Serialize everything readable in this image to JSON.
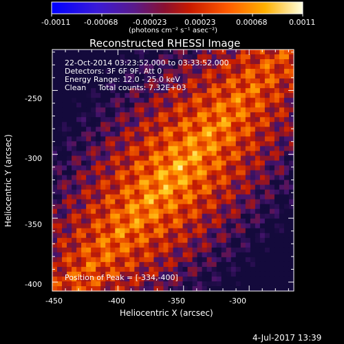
{
  "colorbar": {
    "ticks": [
      "-0.0011",
      "-0.00068",
      "-0.00023",
      "0.00023",
      "0.00068",
      "0.0011"
    ],
    "unit_label": "(photons cm⁻² s⁻¹ asec⁻²)"
  },
  "title": "Reconstructed RHESSI Image",
  "info": {
    "line1": "22-Oct-2014 03:23:52.000 to 03:33:52.000",
    "line2": "Detectors: 3F 6F 9F, Att 0",
    "line3": "Energy Range: 12.0 - 25.0 keV",
    "line4": "Clean     Total counts: 7.32E+03"
  },
  "peak": "Position of Peak = [-334,-400]",
  "axes": {
    "xlabel": "Heliocentric X (arcsec)",
    "ylabel": "Heliocentric Y (arcsec)",
    "xticks": [
      "-450",
      "-400",
      "-350",
      "-300"
    ],
    "yticks": [
      "-250",
      "-300",
      "-350",
      "-400"
    ]
  },
  "timestamp": "4-Jul-2017 13:39"
}
